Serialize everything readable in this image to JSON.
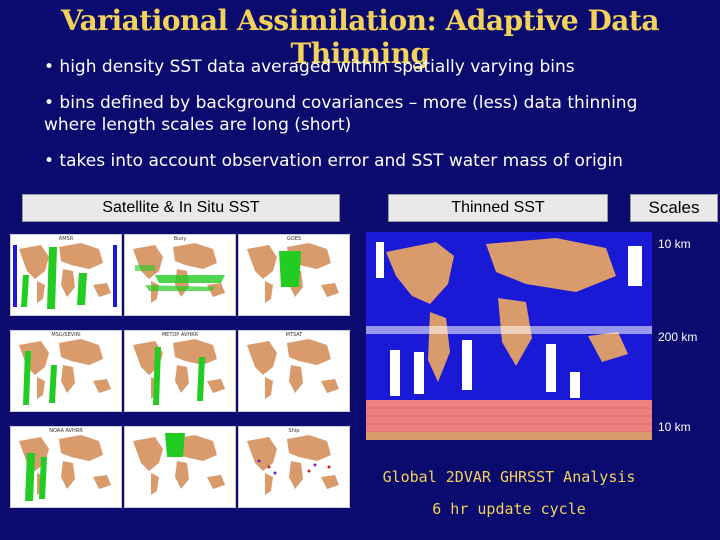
{
  "title": "Variational Assimilation: Adaptive Data Thinning",
  "bullets": [
    "• high density SST data averaged within spatially varying bins",
    "• bins defined by background covariances – more (less) data thinning where length scales are long (short)",
    "• takes into account observation error and SST water mass of origin"
  ],
  "labels": {
    "satellite": "Satellite & In Situ SST",
    "thinned": "Thinned SST",
    "scales": "Scales"
  },
  "thumbnails": [
    {
      "name": "AMSR",
      "color": "#22cc22"
    },
    {
      "name": "Buoy",
      "color": "#22cc22"
    },
    {
      "name": "GOES",
      "color": "#22cc22"
    },
    {
      "name": "MSG/SEVIRI",
      "color": "#22cc22"
    },
    {
      "name": "METOP AVHRR",
      "color": "#22cc22"
    },
    {
      "name": "MTSAT",
      "color": "#22cc22"
    },
    {
      "name": "NOAA AVHRR",
      "color": "#22cc22"
    },
    {
      "name": "Ship",
      "color": "#cc2222"
    }
  ],
  "scales": [
    "10 km",
    "200 km",
    "10 km"
  ],
  "captions": {
    "analysis": "Global 2DVAR GHRSST Analysis",
    "cycle": "6 hr update cycle"
  },
  "colors": {
    "background": "#0b0a6e",
    "title": "#f2d25a",
    "land": "#d99a6c",
    "ocean_obs": "#1a1ad6",
    "southern_ocean": "#ee8080"
  }
}
